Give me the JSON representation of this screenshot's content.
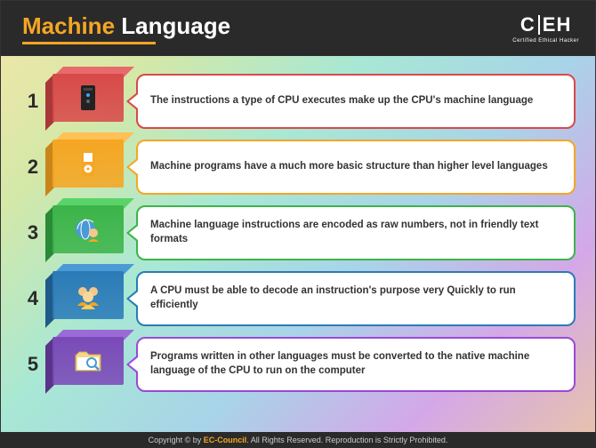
{
  "header": {
    "title_highlight": "Machine",
    "title_rest": " Language",
    "logo_c": "C",
    "logo_e": "E",
    "logo_h": "H",
    "logo_sub": "Certified   Ethical   Hacker"
  },
  "rows": [
    {
      "num": "1",
      "text": "The instructions a type of CPU executes make up the CPU's machine language",
      "box": {
        "front": "#d84a4a",
        "top": "#e86a6a",
        "side": "#a83838"
      },
      "border": "#d84a4a",
      "icon": "tower"
    },
    {
      "num": "2",
      "text": "Machine programs have a much more basic structure than higher level languages",
      "box": {
        "front": "#f5a623",
        "top": "#ffc055",
        "side": "#c8861a"
      },
      "border": "#f5a623",
      "icon": "ipod"
    },
    {
      "num": "3",
      "text": "Machine language instructions are encoded as raw numbers, not in friendly text formats",
      "box": {
        "front": "#3cb44a",
        "top": "#5ad468",
        "side": "#2a8a36"
      },
      "border": "#3cb44a",
      "icon": "globe-user"
    },
    {
      "num": "4",
      "text": "A CPU must be able to decode an instruction's purpose very Quickly to run efficiently",
      "box": {
        "front": "#2b7bb8",
        "top": "#4a9ad6",
        "side": "#1f5a88"
      },
      "border": "#2b7bb8",
      "icon": "people"
    },
    {
      "num": "5",
      "text": "Programs written in other languages must be converted to the native machine language of the CPU to run on the computer",
      "box": {
        "front": "#7a4ab8",
        "top": "#9a6ad6",
        "side": "#5a3488"
      },
      "border": "#9a4ad6",
      "icon": "folder-search"
    }
  ],
  "footer": {
    "prefix": "Copyright © by ",
    "brand": "EC-Council",
    "suffix": ". All Rights Reserved. Reproduction is Strictly Prohibited."
  },
  "icons_svg": {
    "tower": "<rect x='10' y='4' width='16' height='28' rx='2' fill='#222'/><rect x='13' y='7' width='10' height='3' fill='#444'/><circle cx='18' cy='15' r='2' fill='#3af'/><circle cx='18' cy='22' r='2' fill='#666'/>",
    "ipod": "<rect x='11' y='4' width='14' height='28' rx='3' fill='#f5a623'/><rect x='13' y='6' width='10' height='10' fill='#fff'/><circle cx='18' cy='24' r='4.5' fill='#fff'/><circle cx='18' cy='24' r='1.5' fill='#f5a623'/>",
    "globe-user": "<circle cx='15' cy='18' r='11' fill='#4a9ad6'/><path d='M6 18 a11 11 0 0 1 18 -8' fill='none' stroke='#fff' stroke-width='1'/><ellipse cx='15' cy='18' rx='5' ry='11' fill='none' stroke='#fff' stroke-width='1'/><circle cx='24' cy='22' r='5' fill='#f5c88a'/><path d='M18 32 q6 -6 12 0' fill='#f5a623'/>",
    "people": "<circle cx='12' cy='14' r='5' fill='#f5c88a'/><circle cx='24' cy='14' r='5' fill='#f5c88a'/><circle cx='18' cy='20' r='6' fill='#f5d89a'/><path d='M6 30 q6 -8 12 0' fill='#f5a623'/><path d='M18 30 q6 -8 12 0' fill='#f5a623'/><path d='M10 34 q8 -10 16 0' fill='#ffcc55'/>",
    "folder-search": "<path d='M4 12 l4 -4 h8 l3 3 h13 v18 h-28 z' fill='#f5d88a' stroke='#d4a84a'/><path d='M6 14 h24 v14 h-24 z' fill='#fff'/><circle cx='22' cy='20' r='5' fill='none' stroke='#4a9ad6' stroke-width='2'/><line x1='26' y1='24' x2='30' y2='28' stroke='#4a9ad6' stroke-width='2.5'/>"
  }
}
